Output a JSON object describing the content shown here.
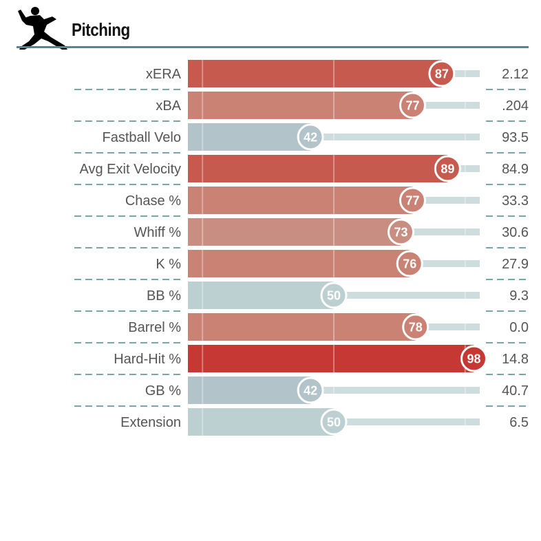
{
  "section": {
    "title": "Pitching",
    "icon": "pitcher-icon"
  },
  "chart_data": {
    "type": "bar",
    "orientation": "horizontal",
    "title": "Pitching",
    "xlim": [
      0,
      100
    ],
    "categories": [
      "xERA",
      "xBA",
      "Fastball Velo",
      "Avg Exit Velocity",
      "Chase %",
      "Whiff %",
      "K %",
      "BB %",
      "Barrel %",
      "Hard-Hit %",
      "GB %",
      "Extension"
    ],
    "percentiles": [
      87,
      77,
      42,
      89,
      77,
      73,
      76,
      50,
      78,
      98,
      42,
      50
    ],
    "stat_values": [
      "2.12",
      ".204",
      "93.5",
      "84.9",
      "33.3",
      "30.6",
      "27.9",
      "9.3",
      "0.0",
      "14.8",
      "40.7",
      "6.5"
    ],
    "colors": [
      "#c75a4e",
      "#c98274",
      "#b2c3ca",
      "#c75a4e",
      "#c98274",
      "#c98e82",
      "#c98274",
      "#bccfd1",
      "#c98274",
      "#c63834",
      "#b2c3ca",
      "#bccfd1"
    ],
    "track_color": "#cddcdd",
    "separator_color": "#4a8a8f"
  }
}
